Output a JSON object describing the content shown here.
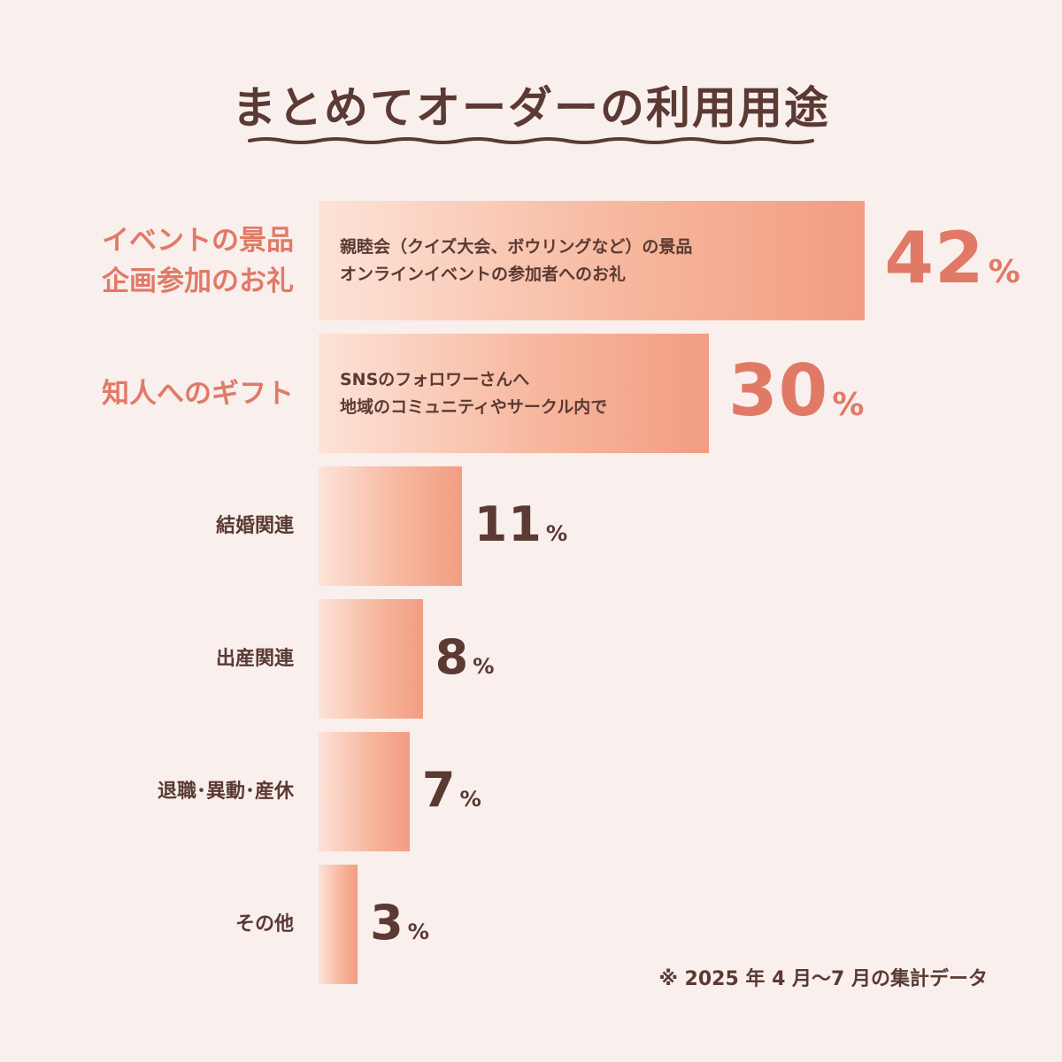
{
  "title": "まとめてオーダーの利用用途",
  "chart_data": {
    "type": "bar",
    "orientation": "horizontal",
    "categories": [
      "イベントの景品\n企画参加のお礼",
      "知人へのギフト",
      "結婚関連",
      "出産関連",
      "退職･異動･産休",
      "その他"
    ],
    "values": [
      42,
      30,
      11,
      8,
      7,
      3
    ],
    "unit": "%",
    "bar_descriptions": [
      "親睦会（クイズ大会、ボウリングなど）の景品\nオンラインイベントの参加者へのお礼",
      "SNSのフォロワーさんへ\n地域のコミュニティやサークル内で",
      "",
      "",
      "",
      ""
    ],
    "highlight_count": 2,
    "colors": {
      "highlight": "#e07a66",
      "text": "#5a3a32",
      "bar_start": "#fde3d8",
      "bar_end": "#f29d82"
    }
  },
  "footnote": "※ 2025 年 4 月〜7 月の集計データ"
}
